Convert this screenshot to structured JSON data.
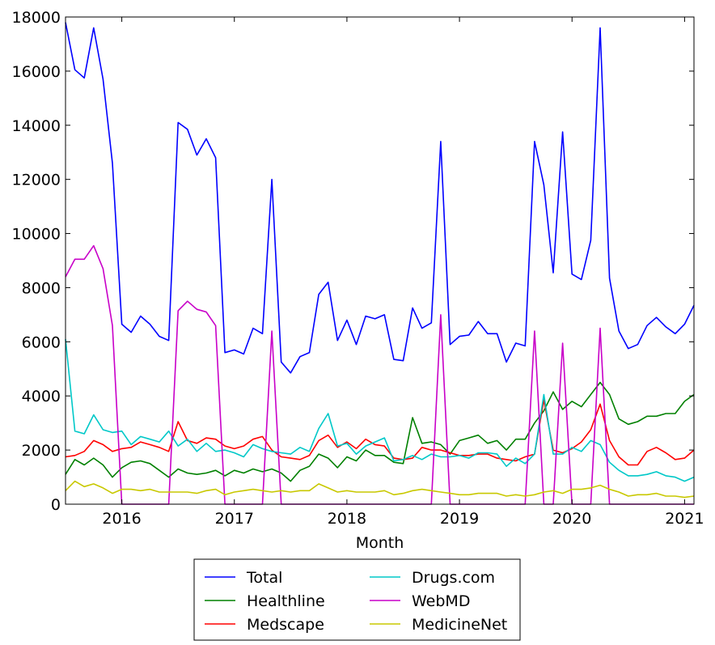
{
  "chart_data": {
    "type": "line",
    "title": "",
    "xlabel": "Month",
    "ylabel": "",
    "xlim": [
      "2015-07",
      "2021-02"
    ],
    "ylim": [
      0,
      18000
    ],
    "grid": false,
    "legend_position": "bottom-center",
    "x_tick_labels": [
      "2016",
      "2017",
      "2018",
      "2019",
      "2020",
      "2021"
    ],
    "y_tick_labels": [
      "0",
      "2000",
      "4000",
      "6000",
      "8000",
      "10000",
      "12000",
      "14000",
      "16000",
      "18000"
    ],
    "x": [
      "2015-07",
      "2015-08",
      "2015-09",
      "2015-10",
      "2015-11",
      "2015-12",
      "2016-01",
      "2016-02",
      "2016-03",
      "2016-04",
      "2016-05",
      "2016-06",
      "2016-07",
      "2016-08",
      "2016-09",
      "2016-10",
      "2016-11",
      "2016-12",
      "2017-01",
      "2017-02",
      "2017-03",
      "2017-04",
      "2017-05",
      "2017-06",
      "2017-07",
      "2017-08",
      "2017-09",
      "2017-10",
      "2017-11",
      "2017-12",
      "2018-01",
      "2018-02",
      "2018-03",
      "2018-04",
      "2018-05",
      "2018-06",
      "2018-07",
      "2018-08",
      "2018-09",
      "2018-10",
      "2018-11",
      "2018-12",
      "2019-01",
      "2019-02",
      "2019-03",
      "2019-04",
      "2019-05",
      "2019-06",
      "2019-07",
      "2019-08",
      "2019-09",
      "2019-10",
      "2019-11",
      "2019-12",
      "2020-01",
      "2020-02",
      "2020-03",
      "2020-04",
      "2020-05",
      "2020-06",
      "2020-07",
      "2020-08",
      "2020-09",
      "2020-10",
      "2020-11",
      "2020-12",
      "2021-01",
      "2021-02"
    ],
    "series": [
      {
        "name": "Total",
        "color": "#0000ff",
        "values": [
          17800,
          16050,
          15750,
          17600,
          15700,
          12600,
          6650,
          6350,
          6950,
          6650,
          6200,
          6050,
          14100,
          13850,
          12900,
          13500,
          12800,
          5600,
          5700,
          5550,
          6500,
          6300,
          12000,
          5250,
          4850,
          5450,
          5600,
          7750,
          8200,
          6050,
          6800,
          5900,
          6950,
          6850,
          7000,
          5350,
          5300,
          7250,
          6500,
          6700,
          13400,
          5900,
          6200,
          6250,
          6750,
          6300,
          6300,
          5250,
          5950,
          5850,
          13400,
          11800,
          8550,
          13750,
          8500,
          8300,
          9750,
          17600,
          8350,
          6400,
          5750,
          5900,
          6600,
          6900,
          6550,
          6300,
          6650,
          7350
        ]
      },
      {
        "name": "Healthline",
        "color": "#008000",
        "values": [
          1100,
          1650,
          1450,
          1700,
          1450,
          1000,
          1350,
          1550,
          1600,
          1500,
          1250,
          1000,
          1300,
          1150,
          1100,
          1150,
          1250,
          1050,
          1250,
          1150,
          1300,
          1200,
          1300,
          1150,
          850,
          1250,
          1400,
          1850,
          1700,
          1350,
          1750,
          1600,
          2000,
          1800,
          1800,
          1550,
          1500,
          3200,
          2250,
          2300,
          2200,
          1850,
          2350,
          2450,
          2550,
          2250,
          2350,
          2000,
          2400,
          2400,
          3000,
          3450,
          4150,
          3500,
          3800,
          3600,
          4050,
          4500,
          4050,
          3150,
          2950,
          3050,
          3250,
          3250,
          3350,
          3350,
          3800,
          4050
        ]
      },
      {
        "name": "Medscape",
        "color": "#ff0000",
        "values": [
          1750,
          1800,
          1950,
          2350,
          2200,
          1950,
          2050,
          2100,
          2300,
          2200,
          2100,
          1950,
          3050,
          2350,
          2250,
          2450,
          2400,
          2150,
          2050,
          2150,
          2400,
          2500,
          2000,
          1750,
          1700,
          1650,
          1800,
          2350,
          2550,
          2100,
          2300,
          2050,
          2400,
          2200,
          2150,
          1700,
          1650,
          1700,
          2100,
          2000,
          2000,
          1900,
          1800,
          1800,
          1850,
          1850,
          1700,
          1650,
          1600,
          1750,
          1850,
          3850,
          2000,
          1900,
          2050,
          2300,
          2750,
          3700,
          2350,
          1750,
          1450,
          1450,
          1950,
          2100,
          1900,
          1650,
          1700,
          2000
        ]
      },
      {
        "name": "Drugs.com",
        "color": "#00c8c8",
        "values": [
          6100,
          2700,
          2600,
          3300,
          2750,
          2650,
          2700,
          2200,
          2500,
          2400,
          2300,
          2700,
          2150,
          2400,
          1950,
          2250,
          1950,
          2000,
          1900,
          1750,
          2200,
          2050,
          1950,
          1900,
          1850,
          2100,
          1950,
          2800,
          3350,
          2150,
          2250,
          1850,
          2150,
          2300,
          2450,
          1600,
          1650,
          1800,
          1650,
          1850,
          1750,
          1750,
          1800,
          1700,
          1900,
          1900,
          1850,
          1400,
          1700,
          1500,
          1850,
          4050,
          1850,
          1850,
          2100,
          1950,
          2350,
          2200,
          1550,
          1250,
          1050,
          1050,
          1100,
          1200,
          1050,
          1000,
          850,
          1000
        ]
      },
      {
        "name": "WebMD",
        "color": "#c800c8",
        "values": [
          8400,
          9050,
          9050,
          9550,
          8700,
          6600,
          0,
          0,
          0,
          0,
          0,
          0,
          7150,
          7500,
          7200,
          7100,
          6600,
          0,
          0,
          0,
          0,
          0,
          6400,
          0,
          0,
          0,
          0,
          0,
          0,
          0,
          0,
          0,
          0,
          0,
          0,
          0,
          0,
          0,
          0,
          0,
          7000,
          0,
          0,
          0,
          0,
          0,
          0,
          0,
          0,
          0,
          6400,
          0,
          0,
          5950,
          0,
          0,
          0,
          6500,
          0,
          0,
          0,
          0,
          0,
          0,
          0,
          0,
          0,
          0
        ]
      },
      {
        "name": "MedicineNet",
        "color": "#c8c800",
        "values": [
          500,
          850,
          650,
          750,
          600,
          400,
          550,
          550,
          500,
          550,
          450,
          450,
          450,
          450,
          400,
          500,
          550,
          350,
          450,
          500,
          550,
          500,
          450,
          500,
          450,
          500,
          500,
          750,
          600,
          450,
          500,
          450,
          450,
          450,
          500,
          350,
          400,
          500,
          550,
          500,
          450,
          400,
          350,
          350,
          400,
          400,
          400,
          300,
          350,
          300,
          350,
          450,
          500,
          400,
          550,
          550,
          600,
          700,
          550,
          450,
          300,
          350,
          350,
          400,
          300,
          300,
          250,
          300
        ]
      }
    ]
  }
}
